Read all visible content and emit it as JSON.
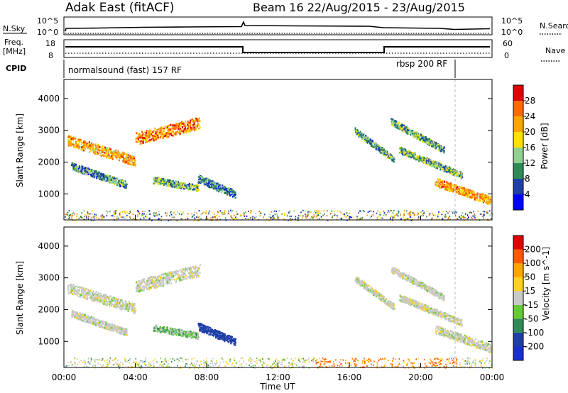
{
  "header": {
    "station": "Adak East (fitACF)",
    "beam_info": "Beam 16 22/Aug/2015 - 23/Aug/2015"
  },
  "panels": {
    "nsky": {
      "left_label": "N.Sky",
      "right_label": "N.Search",
      "left_ticks": [
        "10^5",
        "10^0"
      ],
      "right_ticks": [
        "10^5",
        "10^0"
      ]
    },
    "freq": {
      "left_label_1": "Freq.",
      "left_label_2": "[MHz]",
      "right_label": "Nave",
      "left_ticks": [
        "18",
        "8"
      ],
      "right_ticks": [
        "60",
        "0"
      ]
    },
    "cpid": {
      "label": "CPID",
      "mode_1": "normalsound (fast) 157 RF",
      "mode_2": "rbsp 200 RF"
    }
  },
  "chart_data": [
    {
      "type": "heatmap",
      "title": "",
      "ylabel": "Slant Range [km]",
      "xlim": [
        "00:00",
        "00:00"
      ],
      "ylim": [
        180,
        4600
      ],
      "y_ticks": [
        "1000",
        "2000",
        "3000",
        "4000"
      ],
      "colorbar": {
        "label": "Power [dB]",
        "ticks": [
          "4",
          "8",
          "12",
          "16",
          "20",
          "24",
          "28"
        ],
        "colors": [
          "#0000ff",
          "#1f3fa8",
          "#2e8b57",
          "#8fd18f",
          "#ffe100",
          "#ffa500",
          "#ff6a00",
          "#e00000"
        ]
      },
      "scatter_bands": [
        {
          "t_start": 0.2,
          "t_end": 4.0,
          "r_start": 2700,
          "r_end": 2050,
          "width": 320,
          "power": 22
        },
        {
          "t_start": 4.0,
          "t_end": 7.6,
          "r_start": 2750,
          "r_end": 3250,
          "width": 380,
          "power": 24
        },
        {
          "t_start": 0.4,
          "t_end": 3.5,
          "r_start": 1900,
          "r_end": 1300,
          "width": 220,
          "power": 10
        },
        {
          "t_start": 5.0,
          "t_end": 7.5,
          "r_start": 1450,
          "r_end": 1200,
          "width": 200,
          "power": 12
        },
        {
          "t_start": 7.5,
          "t_end": 9.6,
          "r_start": 1500,
          "r_end": 1000,
          "width": 250,
          "power": 9
        },
        {
          "t_start": 16.3,
          "t_end": 18.5,
          "r_start": 3000,
          "r_end": 2100,
          "width": 200,
          "power": 11
        },
        {
          "t_start": 18.3,
          "t_end": 21.3,
          "r_start": 3300,
          "r_end": 2400,
          "width": 200,
          "power": 12
        },
        {
          "t_start": 18.8,
          "t_end": 22.3,
          "r_start": 2400,
          "r_end": 1600,
          "width": 200,
          "power": 13
        },
        {
          "t_start": 20.8,
          "t_end": 23.9,
          "r_start": 1400,
          "r_end": 800,
          "width": 260,
          "power": 22
        }
      ]
    },
    {
      "type": "heatmap",
      "title": "",
      "xlabel": "Time UT",
      "ylabel": "Slant Range [km]",
      "x_ticks": [
        "00:00",
        "04:00",
        "08:00",
        "12:00",
        "16:00",
        "20:00",
        "00:00"
      ],
      "ylim": [
        180,
        4600
      ],
      "y_ticks": [
        "1000",
        "2000",
        "3000",
        "4000"
      ],
      "colorbar": {
        "label": "Velocity [m s^-1]",
        "ticks": [
          "200",
          "100",
          "50",
          "15",
          "-15",
          "-50",
          "-100",
          "-200"
        ],
        "colors": [
          "#1a2fd0",
          "#1f3fa8",
          "#2e8b57",
          "#66cc33",
          "#c8c8c8",
          "#ffd21f",
          "#ffa500",
          "#ff5a00",
          "#e00000"
        ]
      },
      "scatter_bands": [
        {
          "t_start": 0.2,
          "t_end": 4.0,
          "r_start": 2700,
          "r_end": 2050,
          "width": 320,
          "velocity": 0
        },
        {
          "t_start": 4.0,
          "t_end": 7.6,
          "r_start": 2750,
          "r_end": 3250,
          "width": 380,
          "velocity": 0
        },
        {
          "t_start": 0.4,
          "t_end": 3.5,
          "r_start": 1900,
          "r_end": 1300,
          "width": 220,
          "velocity": 0
        },
        {
          "t_start": 5.0,
          "t_end": 7.5,
          "r_start": 1450,
          "r_end": 1200,
          "width": 200,
          "velocity": 20
        },
        {
          "t_start": 7.5,
          "t_end": 9.6,
          "r_start": 1500,
          "r_end": 1000,
          "width": 250,
          "velocity": 120
        },
        {
          "t_start": 16.3,
          "t_end": 18.5,
          "r_start": 3000,
          "r_end": 2100,
          "width": 200,
          "velocity": 0
        },
        {
          "t_start": 18.3,
          "t_end": 21.3,
          "r_start": 3300,
          "r_end": 2400,
          "width": 200,
          "velocity": 0
        },
        {
          "t_start": 18.8,
          "t_end": 22.3,
          "r_start": 2400,
          "r_end": 1600,
          "width": 200,
          "velocity": 0
        },
        {
          "t_start": 20.8,
          "t_end": 23.9,
          "r_start": 1400,
          "r_end": 800,
          "width": 260,
          "velocity": 0
        }
      ]
    }
  ]
}
